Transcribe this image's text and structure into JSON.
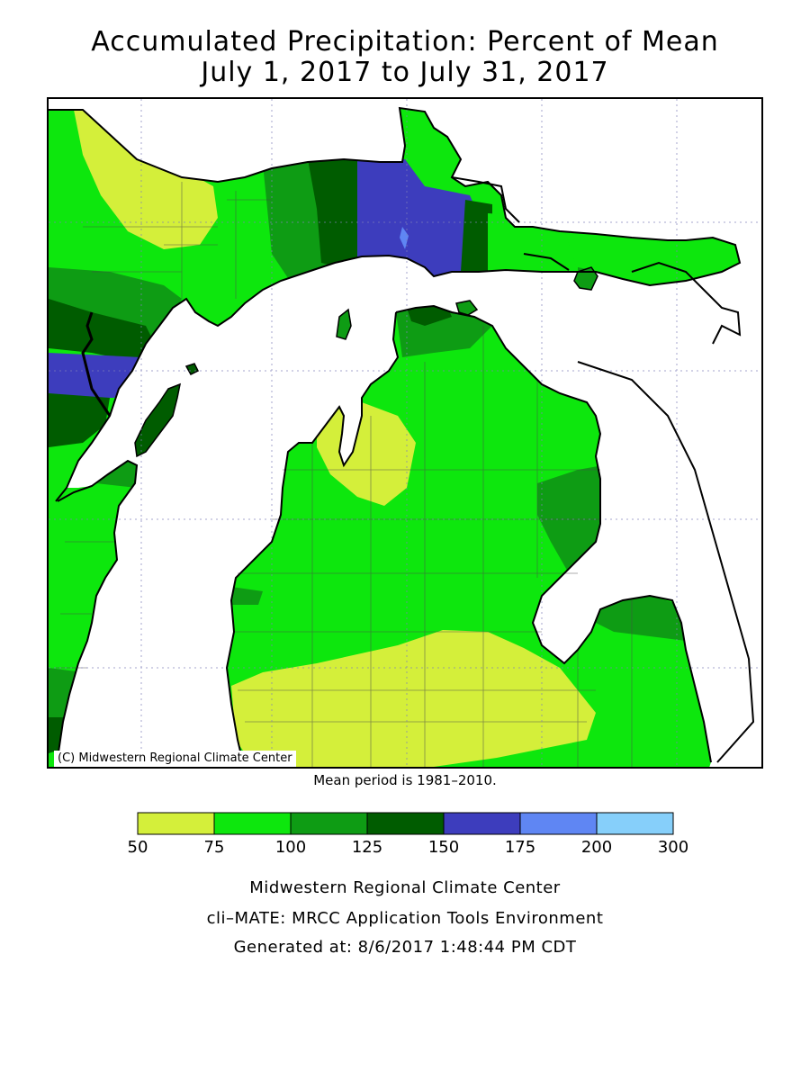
{
  "title_line1": "Accumulated Precipitation: Percent of Mean",
  "title_line2": "July 1, 2017 to July 31, 2017",
  "copyright": "(C) Midwestern Regional Climate Center",
  "mean_note": "Mean period is 1981–2010.",
  "legend": {
    "tick_labels": [
      "50",
      "75",
      "100",
      "125",
      "150",
      "175",
      "200",
      "300"
    ],
    "bins": [
      {
        "from": 50,
        "to": 75,
        "color": "#d4ef3a"
      },
      {
        "from": 75,
        "to": 100,
        "color": "#0de70d"
      },
      {
        "from": 100,
        "to": 125,
        "color": "#0e9c14"
      },
      {
        "from": 125,
        "to": 150,
        "color": "#005c00"
      },
      {
        "from": 150,
        "to": 175,
        "color": "#3d3dbd"
      },
      {
        "from": 175,
        "to": 200,
        "color": "#5f86f3"
      },
      {
        "from": 200,
        "to": 300,
        "color": "#86cffa"
      }
    ]
  },
  "footer": {
    "line1": "Midwestern Regional Climate Center",
    "line2": "cli–MATE: MRCC Application Tools Environment",
    "line3": "Generated at: 8/6/2017 1:48:44 PM CDT"
  }
}
